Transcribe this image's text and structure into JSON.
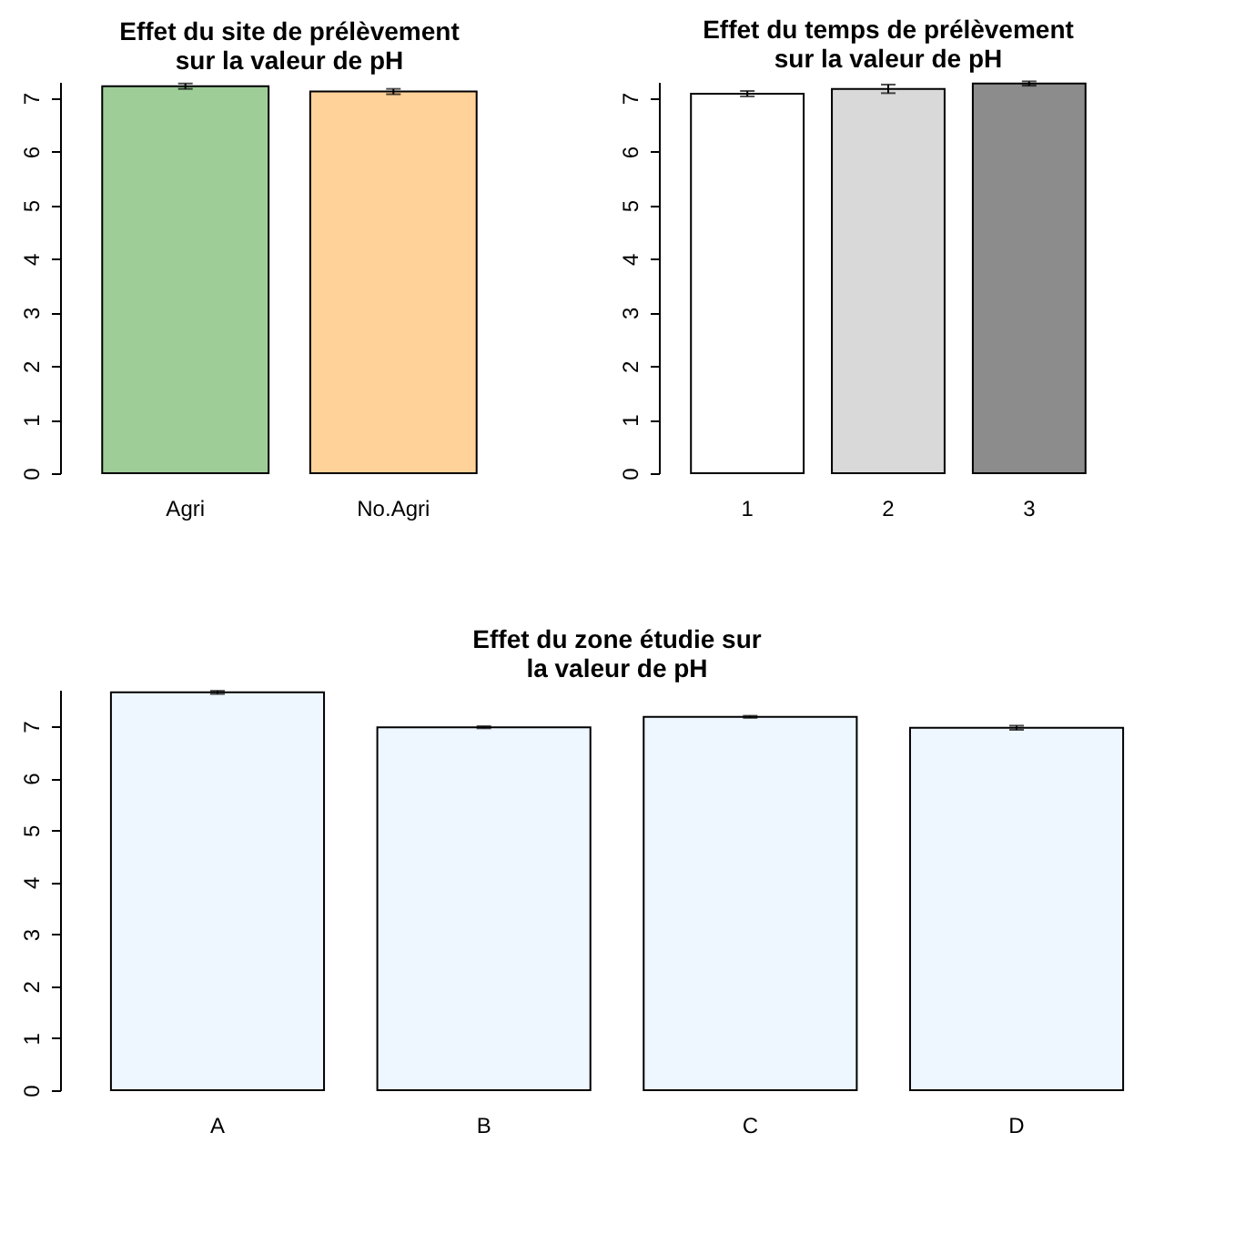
{
  "chart_data": [
    {
      "type": "bar",
      "title": "Effet du site de prélèvement\nsur la valeur de pH",
      "categories": [
        "Agri",
        "No.Agri"
      ],
      "values": [
        7.22,
        7.12
      ],
      "errors": [
        0.05,
        0.05
      ],
      "colors": [
        "#9ecd98",
        "#fed298"
      ],
      "ylim": [
        0,
        7.3
      ],
      "yticks": [
        0,
        1,
        2,
        3,
        4,
        5,
        6,
        7
      ],
      "grid": false
    },
    {
      "type": "bar",
      "title": "Effet du temps de prélèvement\nsur la valeur de pH",
      "categories": [
        "1",
        "2",
        "3"
      ],
      "values": [
        7.08,
        7.17,
        7.27
      ],
      "errors": [
        0.05,
        0.08,
        0.04
      ],
      "colors": [
        "#ffffff",
        "#d9d9d9",
        "#8c8c8c"
      ],
      "ylim": [
        0,
        7.3
      ],
      "yticks": [
        0,
        1,
        2,
        3,
        4,
        5,
        6,
        7
      ],
      "grid": false
    },
    {
      "type": "bar",
      "title": "Effet du zone étudie sur\nla valeur de pH",
      "categories": [
        "A",
        "B",
        "C",
        "D"
      ],
      "values": [
        7.65,
        6.98,
        7.18,
        6.97
      ],
      "errors": [
        0.03,
        0.02,
        0.02,
        0.04
      ],
      "color": "#eef6ff",
      "ylim": [
        0,
        7.7
      ],
      "yticks": [
        0,
        1,
        2,
        3,
        4,
        5,
        6,
        7
      ],
      "grid": false
    }
  ]
}
